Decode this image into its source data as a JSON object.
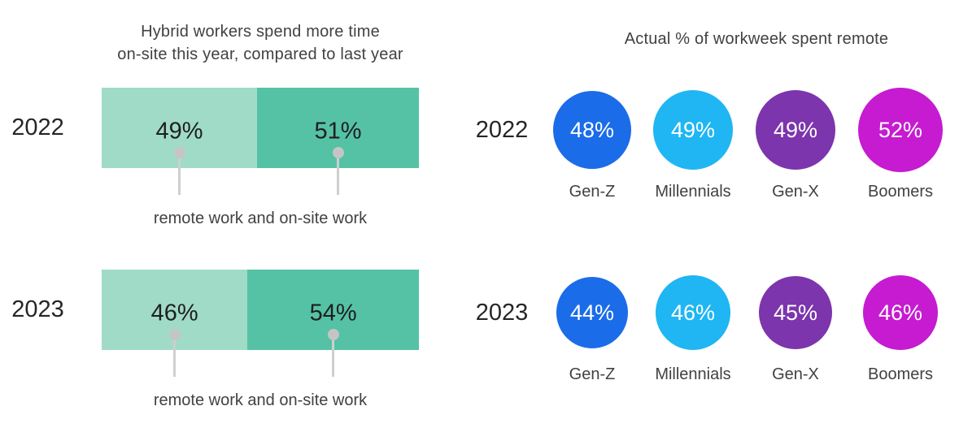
{
  "left": {
    "title_line1": "Hybrid workers spend more time",
    "title_line2": "on-site this year, compared to last year"
  },
  "right": {
    "title": "Actual % of workweek spent remote"
  },
  "chart_data": [
    {
      "type": "bar",
      "variant": "horizontal-stacked-100",
      "title": "Hybrid workers spend more time on-site this year, compared to last year",
      "categories": [
        "2022",
        "2023"
      ],
      "series": [
        {
          "name": "remote work",
          "color": "#a0dbc8",
          "values": [
            49,
            46
          ]
        },
        {
          "name": "on-site work",
          "color": "#55c2a5",
          "values": [
            51,
            54
          ]
        }
      ],
      "value_labels": [
        [
          "49%",
          "51%"
        ],
        [
          "46%",
          "54%"
        ]
      ],
      "annotation": "remote work and on-site work",
      "unit": "%",
      "xlim": [
        0,
        100
      ],
      "grid": false,
      "legend": false
    },
    {
      "type": "bubble",
      "title": "Actual % of workweek spent remote",
      "categories": [
        "Gen-Z",
        "Millennials",
        "Gen-X",
        "Boomers"
      ],
      "category_colors": [
        "#1b6ce9",
        "#1fb6f3",
        "#7c35ad",
        "#c61bd1"
      ],
      "series": [
        {
          "name": "2022",
          "values": [
            48,
            49,
            49,
            52
          ]
        },
        {
          "name": "2023",
          "values": [
            44,
            46,
            45,
            46
          ]
        }
      ],
      "value_labels": [
        [
          "48%",
          "49%",
          "49%",
          "52%"
        ],
        [
          "44%",
          "46%",
          "45%",
          "46%"
        ]
      ],
      "unit": "%",
      "grid": false,
      "legend": false
    }
  ],
  "style": {
    "callout_dot_color": "#c5c5c5",
    "callout_line_color": "#cfcfcf",
    "text_color": "#414141",
    "value_text_color": "#1f1f1f",
    "bubble_text_color": "#ffffff",
    "background": "#ffffff"
  }
}
